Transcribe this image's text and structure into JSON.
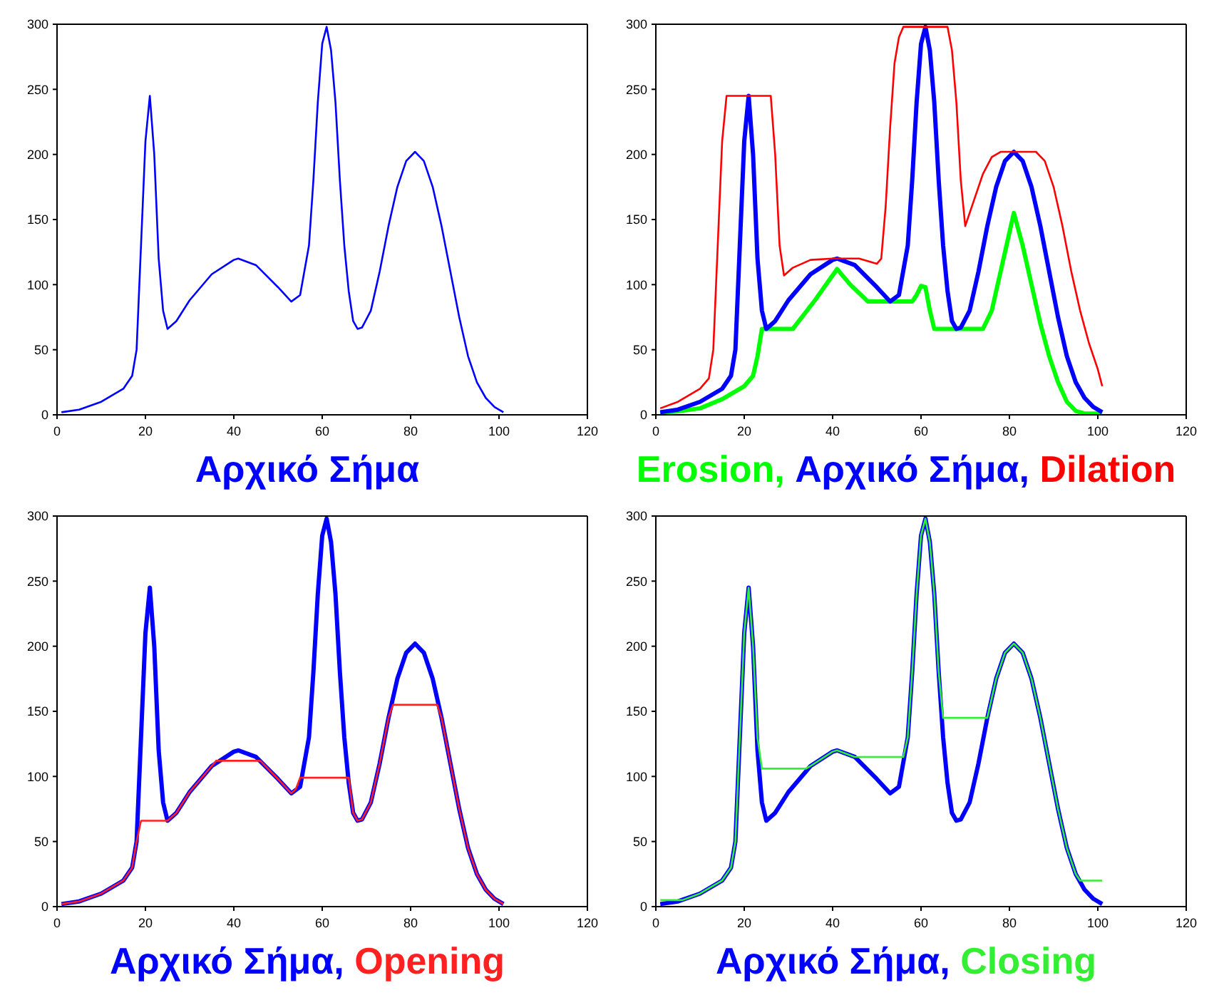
{
  "chart_data": [
    {
      "type": "line",
      "xlim": [
        0,
        120
      ],
      "xticks": [
        0,
        20,
        40,
        60,
        80,
        100,
        120
      ],
      "ylim": [
        0,
        300
      ],
      "yticks": [
        0,
        50,
        100,
        150,
        200,
        250,
        300
      ],
      "grid": false,
      "legend": "bottom",
      "marker": "none",
      "line_style": "solid",
      "series": [
        {
          "name": "Αρχικό Σήμα",
          "color": "#0000ff",
          "x": [
            1,
            5,
            10,
            15,
            17,
            18,
            19,
            20,
            21,
            22,
            23,
            24,
            25,
            27,
            30,
            35,
            40,
            41,
            45,
            50,
            53,
            55,
            57,
            58,
            59,
            60,
            61,
            62,
            63,
            64,
            65,
            66,
            67,
            68,
            69,
            71,
            73,
            75,
            77,
            79,
            81,
            83,
            85,
            87,
            89,
            91,
            93,
            95,
            97,
            99,
            101
          ],
          "values": [
            2,
            4,
            10,
            20,
            30,
            50,
            130,
            210,
            245,
            200,
            120,
            80,
            66,
            72,
            88,
            108,
            119,
            120,
            115,
            98,
            87,
            92,
            130,
            180,
            240,
            285,
            298,
            280,
            240,
            180,
            130,
            95,
            72,
            66,
            67,
            80,
            110,
            145,
            175,
            195,
            202,
            195,
            175,
            145,
            110,
            75,
            45,
            25,
            13,
            6,
            2
          ]
        }
      ]
    },
    {
      "type": "line",
      "xlim": [
        0,
        120
      ],
      "xticks": [
        0,
        20,
        40,
        60,
        80,
        100,
        120
      ],
      "ylim": [
        0,
        300
      ],
      "yticks": [
        0,
        50,
        100,
        150,
        200,
        250,
        300
      ],
      "grid": false,
      "legend": "bottom",
      "marker": "none",
      "line_style": "solid",
      "series": [
        {
          "name": "Erosion,",
          "color": "#00ff00",
          "x": [
            1,
            10,
            15,
            20,
            22,
            23,
            24,
            31,
            36,
            41,
            44,
            48,
            58,
            59,
            60,
            61,
            62,
            63,
            74,
            76,
            78,
            80,
            81,
            83,
            85,
            87,
            89,
            91,
            93,
            95,
            97,
            101
          ],
          "values": [
            1,
            5,
            12,
            22,
            30,
            45,
            66,
            66,
            88,
            112,
            100,
            87,
            87,
            92,
            99,
            98,
            80,
            66,
            66,
            80,
            110,
            140,
            155,
            130,
            100,
            70,
            45,
            25,
            10,
            3,
            1,
            1
          ]
        },
        {
          "name": "Αρχικό Σήμα,",
          "color": "#0000ff",
          "x": [
            1,
            5,
            10,
            15,
            17,
            18,
            19,
            20,
            21,
            22,
            23,
            24,
            25,
            27,
            30,
            35,
            40,
            41,
            45,
            50,
            53,
            55,
            57,
            58,
            59,
            60,
            61,
            62,
            63,
            64,
            65,
            66,
            67,
            68,
            69,
            71,
            73,
            75,
            77,
            79,
            81,
            83,
            85,
            87,
            89,
            91,
            93,
            95,
            97,
            99,
            101
          ],
          "values": [
            2,
            4,
            10,
            20,
            30,
            50,
            130,
            210,
            245,
            200,
            120,
            80,
            66,
            72,
            88,
            108,
            119,
            120,
            115,
            98,
            87,
            92,
            130,
            180,
            240,
            285,
            298,
            280,
            240,
            180,
            130,
            95,
            72,
            66,
            67,
            80,
            110,
            145,
            175,
            195,
            202,
            195,
            175,
            145,
            110,
            75,
            45,
            25,
            13,
            6,
            2
          ]
        },
        {
          "name": "Dilation",
          "color": "#ff0000",
          "x": [
            1,
            5,
            10,
            12,
            13,
            14,
            15,
            16,
            26,
            27,
            28,
            29,
            31,
            35,
            40,
            46,
            49,
            50,
            51,
            52,
            53,
            54,
            55,
            56,
            66,
            67,
            68,
            69,
            70,
            72,
            74,
            76,
            78,
            86,
            88,
            90,
            92,
            94,
            96,
            98,
            100,
            101
          ],
          "values": [
            5,
            10,
            20,
            28,
            50,
            130,
            210,
            245,
            245,
            200,
            130,
            107,
            113,
            119,
            120,
            120,
            117,
            116,
            120,
            160,
            220,
            270,
            290,
            298,
            298,
            280,
            240,
            180,
            145,
            165,
            185,
            198,
            202,
            202,
            195,
            175,
            145,
            110,
            80,
            55,
            35,
            22
          ]
        }
      ]
    },
    {
      "type": "line",
      "xlim": [
        0,
        120
      ],
      "xticks": [
        0,
        20,
        40,
        60,
        80,
        100,
        120
      ],
      "ylim": [
        0,
        300
      ],
      "yticks": [
        0,
        50,
        100,
        150,
        200,
        250,
        300
      ],
      "grid": false,
      "legend": "bottom",
      "marker": "none",
      "line_style": "solid",
      "series": [
        {
          "name": "Αρχικό Σήμα,",
          "color": "#0000ff",
          "x": [
            1,
            5,
            10,
            15,
            17,
            18,
            19,
            20,
            21,
            22,
            23,
            24,
            25,
            27,
            30,
            35,
            40,
            41,
            45,
            50,
            53,
            55,
            57,
            58,
            59,
            60,
            61,
            62,
            63,
            64,
            65,
            66,
            67,
            68,
            69,
            71,
            73,
            75,
            77,
            79,
            81,
            83,
            85,
            87,
            89,
            91,
            93,
            95,
            97,
            99,
            101
          ],
          "values": [
            2,
            4,
            10,
            20,
            30,
            50,
            130,
            210,
            245,
            200,
            120,
            80,
            66,
            72,
            88,
            108,
            119,
            120,
            115,
            98,
            87,
            92,
            130,
            180,
            240,
            285,
            298,
            280,
            240,
            180,
            130,
            95,
            72,
            66,
            67,
            80,
            110,
            145,
            175,
            195,
            202,
            195,
            175,
            145,
            110,
            75,
            45,
            25,
            13,
            6,
            2
          ]
        },
        {
          "name": "Opening",
          "color": "#ff2020",
          "x": [
            1,
            5,
            10,
            15,
            17,
            18,
            19,
            25,
            27,
            30,
            35,
            36,
            46,
            50,
            53,
            54,
            55,
            66,
            67,
            68,
            69,
            71,
            73,
            75,
            76,
            86,
            87,
            89,
            91,
            93,
            95,
            97,
            99,
            101
          ],
          "values": [
            2,
            4,
            10,
            20,
            30,
            50,
            66,
            66,
            72,
            88,
            108,
            112,
            112,
            98,
            87,
            90,
            99,
            99,
            72,
            66,
            67,
            80,
            110,
            145,
            155,
            155,
            145,
            110,
            75,
            45,
            25,
            13,
            6,
            2
          ]
        }
      ]
    },
    {
      "type": "line",
      "xlim": [
        0,
        120
      ],
      "xticks": [
        0,
        20,
        40,
        60,
        80,
        100,
        120
      ],
      "ylim": [
        0,
        300
      ],
      "yticks": [
        0,
        50,
        100,
        150,
        200,
        250,
        300
      ],
      "grid": false,
      "legend": "bottom",
      "marker": "none",
      "line_style": "solid",
      "series": [
        {
          "name": "Αρχικό Σήμα,",
          "color": "#0000ff",
          "x": [
            1,
            5,
            10,
            15,
            17,
            18,
            19,
            20,
            21,
            22,
            23,
            24,
            25,
            27,
            30,
            35,
            40,
            41,
            45,
            50,
            53,
            55,
            57,
            58,
            59,
            60,
            61,
            62,
            63,
            64,
            65,
            66,
            67,
            68,
            69,
            71,
            73,
            75,
            77,
            79,
            81,
            83,
            85,
            87,
            89,
            91,
            93,
            95,
            97,
            99,
            101
          ],
          "values": [
            2,
            4,
            10,
            20,
            30,
            50,
            130,
            210,
            245,
            200,
            120,
            80,
            66,
            72,
            88,
            108,
            119,
            120,
            115,
            98,
            87,
            92,
            130,
            180,
            240,
            285,
            298,
            280,
            240,
            180,
            130,
            95,
            72,
            66,
            67,
            80,
            110,
            145,
            175,
            195,
            202,
            195,
            175,
            145,
            110,
            75,
            45,
            25,
            13,
            6,
            2
          ]
        },
        {
          "name": "Closing",
          "color": "#33ee33",
          "x": [
            1,
            6,
            10,
            15,
            17,
            18,
            19,
            20,
            21,
            22,
            23,
            24,
            34,
            35,
            40,
            41,
            45,
            56,
            57,
            58,
            59,
            60,
            61,
            62,
            63,
            64,
            65,
            75,
            77,
            79,
            81,
            83,
            85,
            87,
            89,
            91,
            93,
            95,
            96,
            101
          ],
          "values": [
            5,
            5,
            10,
            20,
            30,
            50,
            130,
            210,
            245,
            200,
            130,
            106,
            106,
            108,
            119,
            120,
            115,
            115,
            130,
            180,
            240,
            285,
            298,
            280,
            240,
            180,
            145,
            145,
            175,
            195,
            202,
            195,
            175,
            145,
            110,
            75,
            45,
            25,
            20,
            20
          ]
        }
      ]
    }
  ]
}
